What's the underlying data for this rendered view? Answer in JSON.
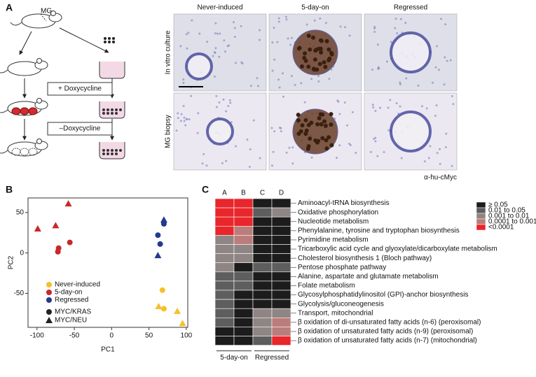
{
  "panel_a": {
    "label": "A",
    "columns": [
      "Never-induced",
      "5-day-on",
      "Regressed"
    ],
    "rows": [
      "In vitro culture",
      "MG biopsy"
    ],
    "stain": "α-hu-cMyc",
    "diagram": {
      "gland": "MG",
      "plus": "+ Doxycycline",
      "minus": "–Doxycycline"
    }
  },
  "chart_data": [
    {
      "type": "scatter",
      "panel": "B",
      "x_label": "PC1",
      "y_label": "PC2",
      "xlim": [
        -112,
        102
      ],
      "ylim": [
        -92,
        68
      ],
      "xticks": [
        -100,
        -50,
        0,
        50,
        100
      ],
      "yticks": [
        -50,
        0,
        50
      ],
      "series": [
        {
          "name": "Never-induced",
          "color": "#f5c02a",
          "x": [
            68,
            70,
            63,
            88,
            95
          ],
          "y": [
            -46,
            -69,
            -66,
            -72,
            -87
          ],
          "marker": [
            "circle",
            "circle",
            "triangle",
            "triangle",
            "triangle"
          ]
        },
        {
          "name": "5-day-on",
          "color": "#c8282a",
          "x": [
            -71,
            -72,
            -56,
            -58,
            -75,
            -99
          ],
          "y": [
            6,
            1.5,
            13,
            61,
            34,
            30
          ],
          "marker": [
            "circle",
            "circle",
            "circle",
            "triangle",
            "triangle",
            "triangle"
          ]
        },
        {
          "name": "Regressed",
          "color": "#233a8e",
          "x": [
            62,
            65,
            70,
            62,
            70
          ],
          "y": [
            22,
            11,
            36,
            -3,
            41
          ],
          "marker": [
            "circle",
            "circle",
            "circle",
            "triangle",
            "triangle"
          ]
        }
      ],
      "shape_legend": [
        {
          "name": "MYC/KRAS",
          "marker": "circle"
        },
        {
          "name": "MYC/NEU",
          "marker": "triangle"
        }
      ]
    },
    {
      "type": "heatmap",
      "panel": "C",
      "columns": [
        "A",
        "B",
        "C",
        "D"
      ],
      "groups": [
        {
          "name": "5-day-on",
          "span": [
            0,
            1
          ]
        },
        {
          "name": "Regressed",
          "span": [
            2,
            3
          ]
        }
      ],
      "rows": [
        "Aminoacyl-tRNA biosynthesis",
        "Oxidative phosphorylation",
        "Nucleotide metabolism",
        "Phenylalanine, tyrosine and tryptophan biosynthesis",
        "Pyrimidine metabolism",
        "Tricarboxylic acid cycle and glyoxylate/dicarboxylate metabolism",
        "Cholesterol biosynthesis 1 (Bloch pathway)",
        "Pentose phosphate pathway",
        "Alanine, aspartate and glutamate metabolism",
        "Folate metabolism",
        "Glycosylphosphatidylinositol (GPI)-anchor biosynthesis",
        "Glycolysis/gluconeogenesis",
        "Transport, mitochondrial",
        "β oxidation of di-unsaturated fatty acids (n-6) (peroxisomal)",
        "β oxidation of unsaturated fatty acids (n-9) (peroxisomal)",
        "β oxidation of unsaturated fatty acids (n-7) (mitochondrial)"
      ],
      "levels": [
        {
          "label": "≥ 0.05",
          "color": "#1c1c1c"
        },
        {
          "label": "0.01 to 0.05",
          "color": "#5e5e5e"
        },
        {
          "label": "0.001 to 0.01",
          "color": "#8f8585"
        },
        {
          "label": "0.0001 to 0.001",
          "color": "#bb7d7b"
        },
        {
          "label": "<0.0001",
          "color": "#e8262b"
        }
      ],
      "cells": [
        [
          4,
          4,
          0,
          0
        ],
        [
          4,
          4,
          1,
          2
        ],
        [
          4,
          4,
          0,
          0
        ],
        [
          4,
          3,
          0,
          0
        ],
        [
          2,
          3,
          0,
          0
        ],
        [
          2,
          2,
          0,
          0
        ],
        [
          2,
          2,
          0,
          0
        ],
        [
          2,
          0,
          1,
          1
        ],
        [
          1,
          1,
          0,
          0
        ],
        [
          1,
          1,
          0,
          0
        ],
        [
          1,
          0,
          0,
          0
        ],
        [
          1,
          0,
          0,
          0
        ],
        [
          1,
          0,
          2,
          2
        ],
        [
          1,
          0,
          2,
          3
        ],
        [
          0,
          0,
          2,
          3
        ],
        [
          0,
          0,
          1,
          4
        ]
      ]
    }
  ]
}
